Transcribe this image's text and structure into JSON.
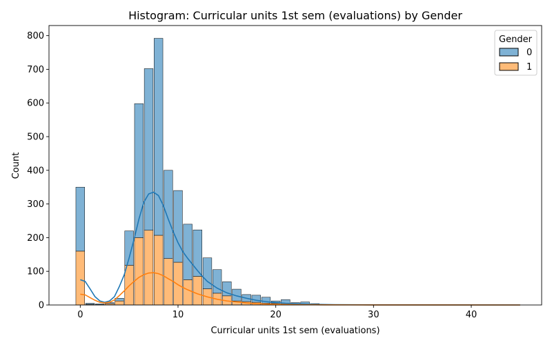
{
  "chart_data": {
    "type": "bar",
    "stacked": true,
    "title": "Histogram: Curricular units 1st sem (evaluations) by Gender",
    "xlabel": "Curricular units 1st sem (evaluations)",
    "ylabel": "Count",
    "xlim": [
      -3.2,
      47.2
    ],
    "ylim": [
      0,
      830
    ],
    "xticks": [
      0,
      10,
      20,
      30,
      40
    ],
    "yticks": [
      0,
      100,
      200,
      300,
      400,
      500,
      600,
      700,
      800
    ],
    "bin_width": 0.9,
    "bins": [
      0,
      1,
      2,
      3,
      4,
      5,
      6,
      7,
      8,
      9,
      10,
      11,
      12,
      13,
      14,
      15,
      16,
      17,
      18,
      19,
      20,
      21,
      22,
      23,
      24
    ],
    "series": [
      {
        "name": "1",
        "color": "#ffbb78",
        "values": [
          160,
          2,
          1,
          4,
          12,
          118,
          200,
          222,
          207,
          138,
          127,
          75,
          85,
          48,
          35,
          27,
          12,
          10,
          8,
          5,
          5,
          3,
          2,
          2,
          1
        ]
      },
      {
        "name": "0",
        "color": "#7fb2d5",
        "values": [
          190,
          3,
          2,
          3,
          8,
          102,
          398,
          480,
          585,
          262,
          213,
          165,
          138,
          92,
          70,
          42,
          35,
          21,
          21,
          18,
          7,
          13,
          5,
          7,
          3
        ]
      }
    ],
    "kde": [
      {
        "name": "0",
        "color": "#1f77b4",
        "points": [
          [
            0,
            75
          ],
          [
            0.5,
            70
          ],
          [
            1,
            48
          ],
          [
            1.5,
            25
          ],
          [
            2,
            12
          ],
          [
            2.5,
            8
          ],
          [
            3,
            12
          ],
          [
            3.5,
            25
          ],
          [
            4,
            55
          ],
          [
            4.5,
            90
          ],
          [
            5,
            140
          ],
          [
            5.5,
            195
          ],
          [
            6,
            255
          ],
          [
            6.5,
            305
          ],
          [
            7,
            330
          ],
          [
            7.5,
            335
          ],
          [
            8,
            325
          ],
          [
            8.5,
            295
          ],
          [
            9,
            255
          ],
          [
            9.5,
            218
          ],
          [
            10,
            185
          ],
          [
            10.5,
            158
          ],
          [
            11,
            138
          ],
          [
            11.5,
            120
          ],
          [
            12,
            102
          ],
          [
            12.5,
            85
          ],
          [
            13,
            70
          ],
          [
            14,
            50
          ],
          [
            15,
            36
          ],
          [
            16,
            27
          ],
          [
            17,
            20
          ],
          [
            18,
            14
          ],
          [
            19,
            10
          ],
          [
            20,
            7
          ],
          [
            21,
            5
          ],
          [
            22,
            4
          ],
          [
            23,
            3
          ],
          [
            24,
            2
          ],
          [
            26,
            1
          ],
          [
            30,
            0.4
          ],
          [
            45,
            0
          ]
        ]
      },
      {
        "name": "1",
        "color": "#ff7f0e",
        "points": [
          [
            0,
            32
          ],
          [
            0.5,
            30
          ],
          [
            1,
            22
          ],
          [
            1.5,
            14
          ],
          [
            2,
            8
          ],
          [
            2.5,
            6
          ],
          [
            3,
            8
          ],
          [
            3.5,
            15
          ],
          [
            4,
            28
          ],
          [
            4.5,
            42
          ],
          [
            5,
            57
          ],
          [
            5.5,
            70
          ],
          [
            6,
            82
          ],
          [
            6.5,
            90
          ],
          [
            7,
            95
          ],
          [
            7.5,
            96
          ],
          [
            8,
            93
          ],
          [
            8.5,
            87
          ],
          [
            9,
            78
          ],
          [
            9.5,
            70
          ],
          [
            10,
            60
          ],
          [
            10.5,
            52
          ],
          [
            11,
            45
          ],
          [
            11.5,
            39
          ],
          [
            12,
            33
          ],
          [
            13,
            24
          ],
          [
            14,
            17
          ],
          [
            15,
            12
          ],
          [
            16,
            9
          ],
          [
            17,
            6
          ],
          [
            18,
            4
          ],
          [
            19,
            3
          ],
          [
            20,
            2
          ],
          [
            22,
            1
          ],
          [
            25,
            0.4
          ],
          [
            30,
            0.1
          ],
          [
            45,
            0
          ]
        ]
      }
    ],
    "legend": {
      "title": "Gender",
      "entries": [
        {
          "label": "0",
          "color": "#7fb2d5"
        },
        {
          "label": "1",
          "color": "#ffbb78"
        }
      ],
      "position": "top-right"
    }
  }
}
